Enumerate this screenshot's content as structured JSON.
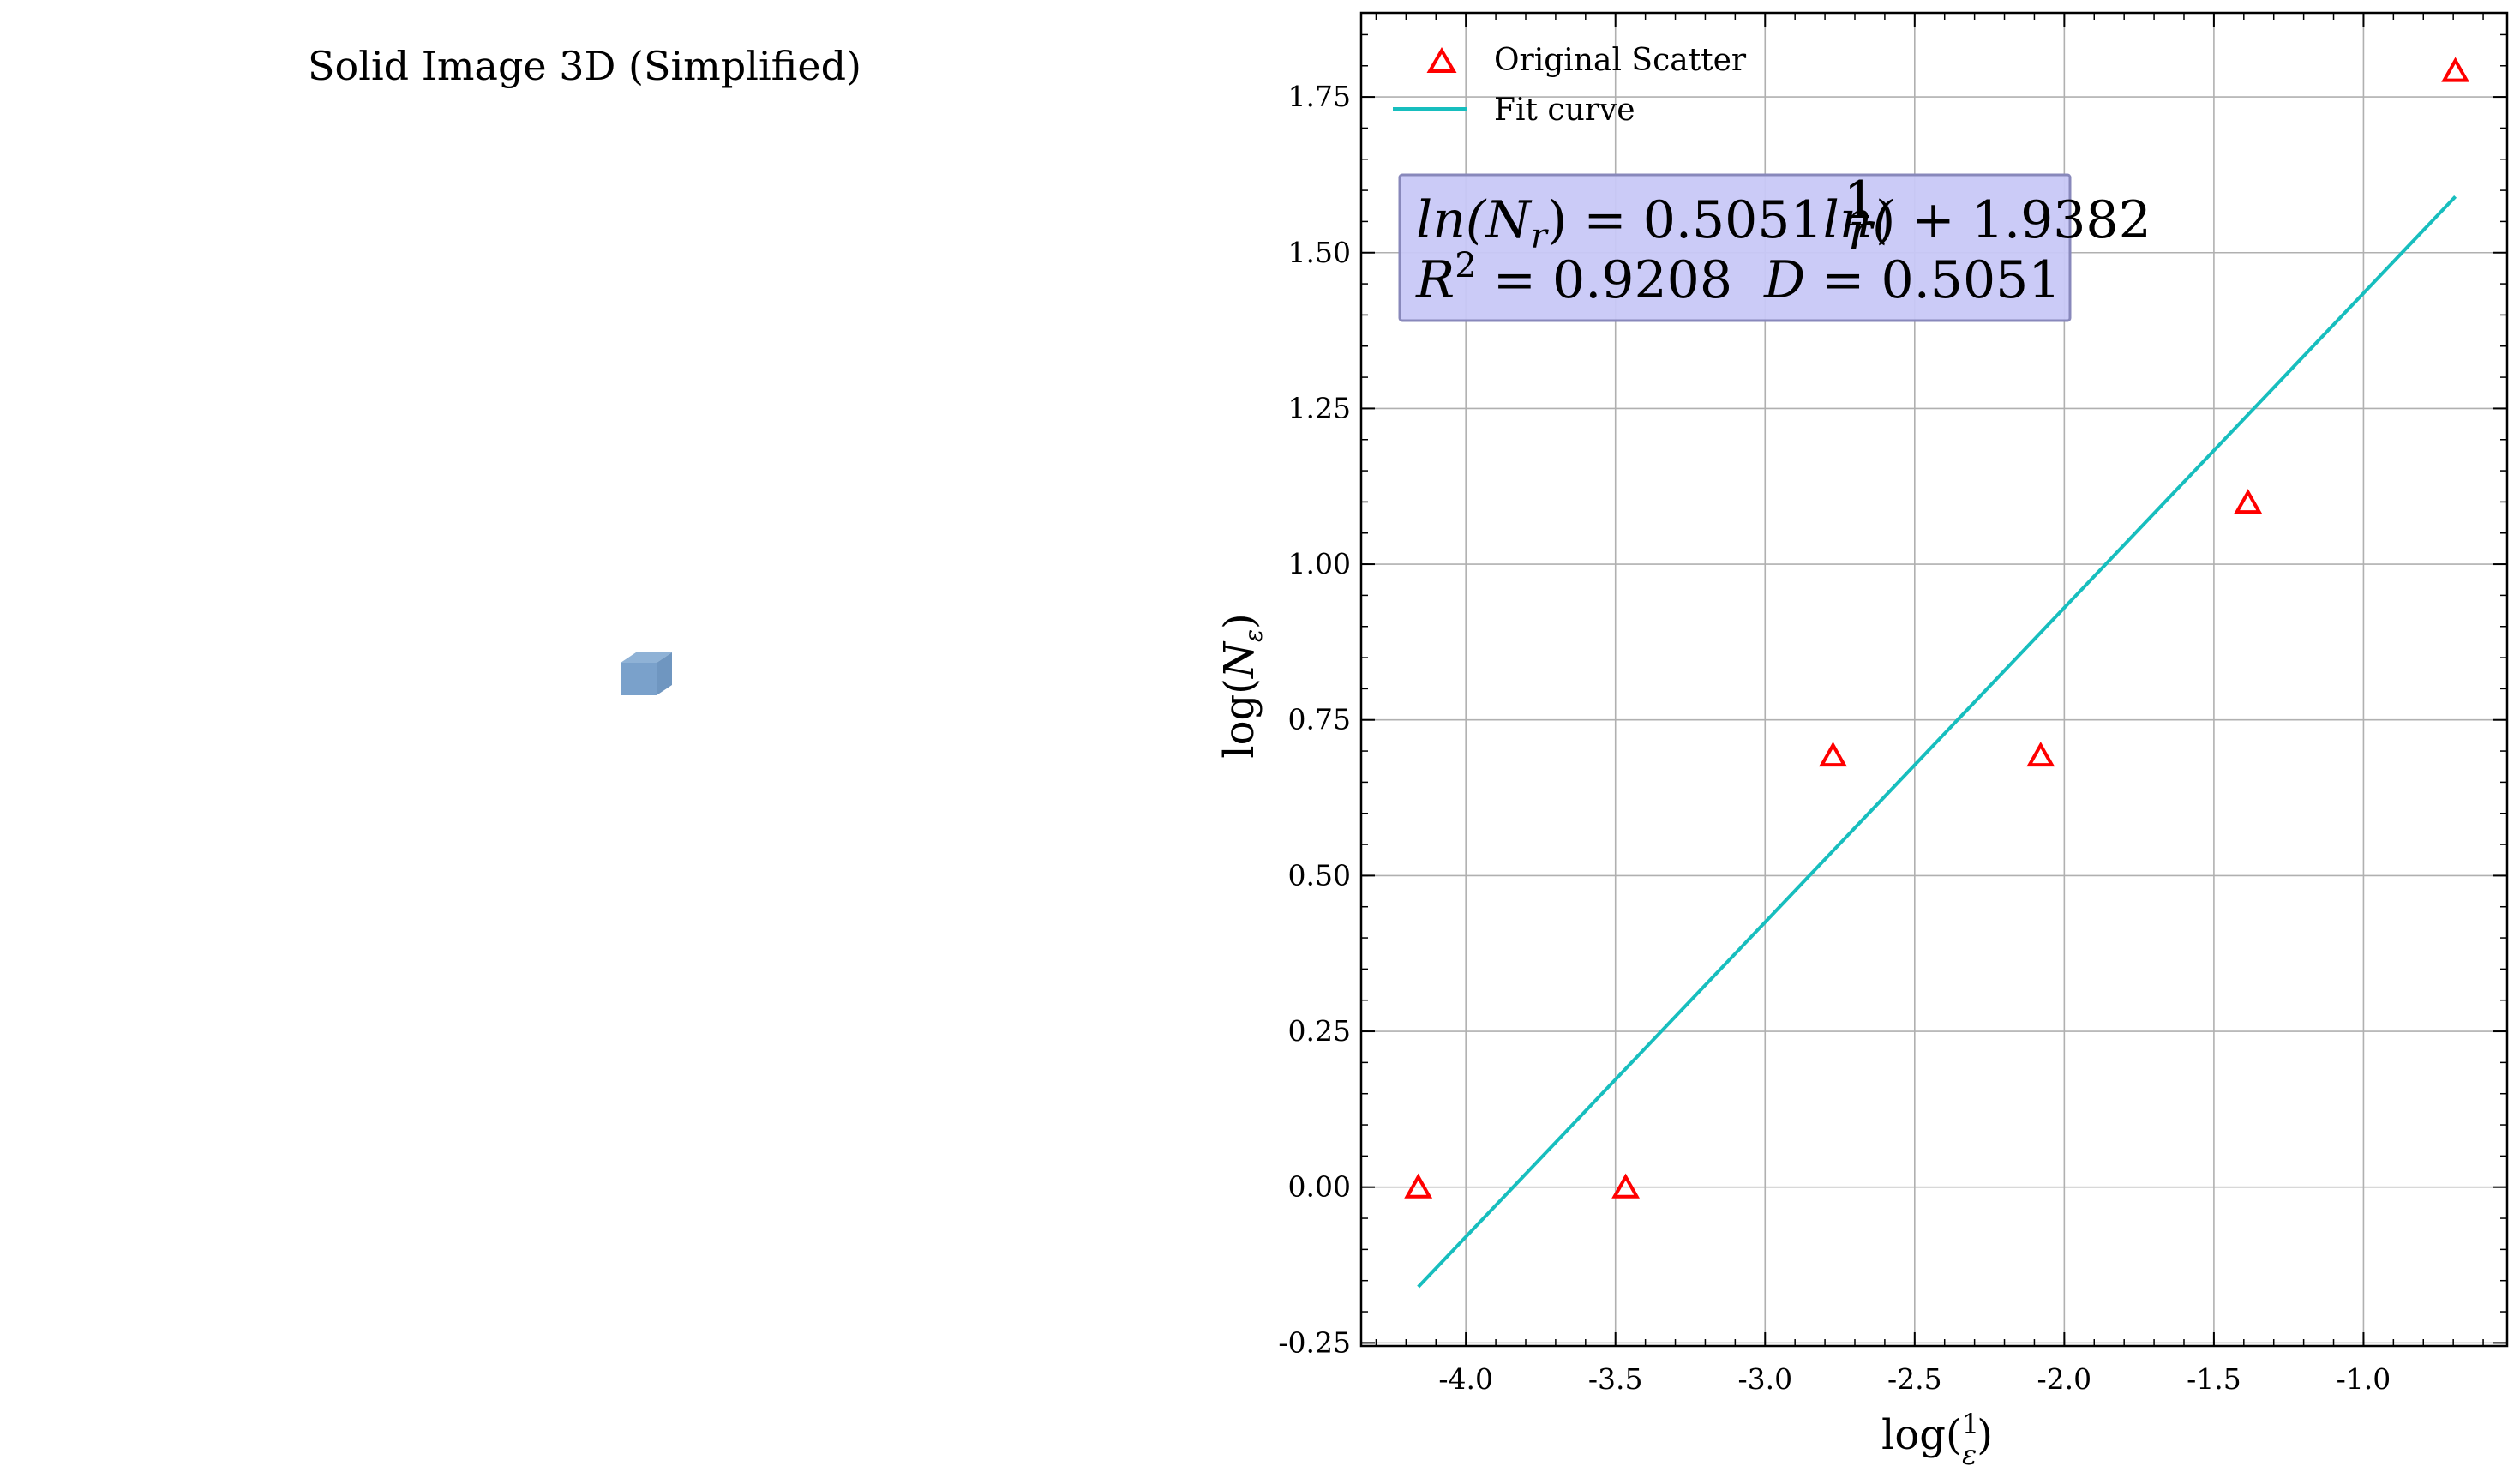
{
  "left_panel": {
    "title": "Solid Image 3D (Simplified)",
    "cube_color": "#7aa1cb"
  },
  "chart_data": {
    "type": "scatter",
    "title": "",
    "xlabel": "log(1/ε)",
    "ylabel": "log(N_ε)",
    "xlim": [
      -4.35,
      -0.52
    ],
    "ylim": [
      -0.255,
      1.885
    ],
    "grid": true,
    "legend_position": "top-left",
    "x_ticks": [
      -4.0,
      -3.5,
      -3.0,
      -2.5,
      -2.0,
      -1.5,
      -1.0
    ],
    "x_tick_labels": [
      "-4.0",
      "-3.5",
      "-3.0",
      "-2.5",
      "-2.0",
      "-1.5",
      "-1.0"
    ],
    "y_ticks": [
      -0.25,
      0.0,
      0.25,
      0.5,
      0.75,
      1.0,
      1.25,
      1.5,
      1.75
    ],
    "y_tick_labels": [
      "-0.25",
      "0.00",
      "0.25",
      "0.50",
      "0.75",
      "1.00",
      "1.25",
      "1.50",
      "1.75"
    ],
    "series": [
      {
        "name": "Original Scatter",
        "kind": "scatter",
        "marker": "triangle-open",
        "color": "#ff0000",
        "x": [
          -4.159,
          -3.466,
          -2.773,
          -2.079,
          -1.386,
          -0.693
        ],
        "y": [
          0.0,
          0.0,
          0.693,
          0.693,
          1.099,
          1.792
        ]
      },
      {
        "name": "Fit curve",
        "kind": "line",
        "color": "#17bebe",
        "x": [
          -4.159,
          -0.693
        ],
        "y": [
          -0.16,
          1.59
        ]
      }
    ],
    "annotation": {
      "line1_lhs": "ln(N",
      "line1_sub": "r",
      "line1_mid": ") = 0.5051",
      "line1_ln": "ln(",
      "line1_frac_num": "1",
      "line1_frac_den": "r",
      "line1_rhs": ") + 1.9382",
      "line2_r": "R",
      "line2_sup": "2",
      "line2_r_value": " = 0.9208",
      "line2_d": "D",
      "line2_d_value": " = 0.5051",
      "box_fill": "#c8c8f7",
      "box_stroke": "#8888bb"
    }
  }
}
